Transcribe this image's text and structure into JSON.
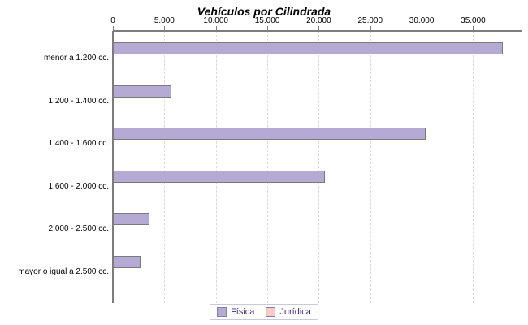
{
  "title": "Vehículos por Cilindrada",
  "chart_data": {
    "type": "bar",
    "orientation": "horizontal",
    "title": "Vehículos por Cilindrada",
    "categories": [
      "menor a 1.200 cc.",
      "1.200 - 1.400 cc.",
      "1.400 - 1.600 cc.",
      "1.600 - 2.000 cc.",
      "2.000 - 2.500 cc.",
      "mayor o igual a 2.500 cc."
    ],
    "series": [
      {
        "name": "Física",
        "color": "#b4aad4",
        "values": [
          37850,
          5650,
          30400,
          20600,
          3550,
          2650
        ]
      },
      {
        "name": "Jurídica",
        "color": "#f8caca",
        "values": [
          0,
          0,
          0,
          0,
          0,
          0
        ]
      }
    ],
    "x_axis": {
      "position": "top",
      "tick_labels": [
        "0",
        "5.000",
        "10.000",
        "15.000",
        "20.000",
        "25.000",
        "30.000",
        "35.000"
      ],
      "tick_values": [
        0,
        5000,
        10000,
        15000,
        20000,
        25000,
        30000,
        35000
      ],
      "min": 0,
      "max": 39700
    },
    "grid": "vertical-dashed",
    "legend_position": "bottom"
  },
  "colors": {
    "bar_fill": "#b4aad4",
    "bar_border": "#7a7a7a",
    "juridica_fill": "#f8caca",
    "axis": "#7d7d7d",
    "gridline": "#d9d9d9",
    "legend_text": "#3a2d7e",
    "legend_border": "#c9c9dc"
  }
}
